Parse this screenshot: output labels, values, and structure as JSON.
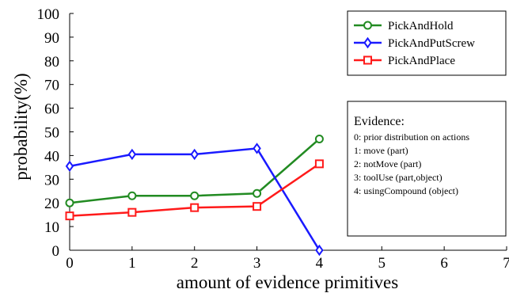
{
  "chart_data": {
    "type": "line",
    "title": "",
    "xlabel": "amount of evidence primitives",
    "ylabel": "probability(%)",
    "xlim": [
      0,
      7
    ],
    "ylim": [
      0,
      100
    ],
    "x_ticks": [
      "0",
      "1",
      "2",
      "3",
      "4",
      "5",
      "6",
      "7"
    ],
    "y_ticks": [
      "0",
      "10",
      "20",
      "30",
      "40",
      "50",
      "60",
      "70",
      "80",
      "90",
      "100"
    ],
    "grid": false,
    "legend_position": "top-right",
    "x": [
      0,
      1,
      2,
      3,
      4
    ],
    "series": [
      {
        "name": "PickAndHold",
        "color": "#228B22",
        "marker": "circle",
        "values": [
          20,
          23,
          23,
          24,
          47
        ]
      },
      {
        "name": "PickAndPutScrew",
        "color": "#1a1aff",
        "marker": "diamond",
        "values": [
          35.5,
          40.5,
          40.5,
          43,
          0
        ]
      },
      {
        "name": "PickAndPlace",
        "color": "#ff1a1a",
        "marker": "square",
        "values": [
          14.5,
          16,
          18,
          18.5,
          36.5
        ]
      }
    ],
    "annotation": {
      "title": "Evidence:",
      "lines": [
        "0: prior distribution on actions",
        "1: move (part)",
        "2: notMove (part)",
        "3: toolUse (part,object)",
        "4: usingCompound (object)"
      ]
    }
  }
}
